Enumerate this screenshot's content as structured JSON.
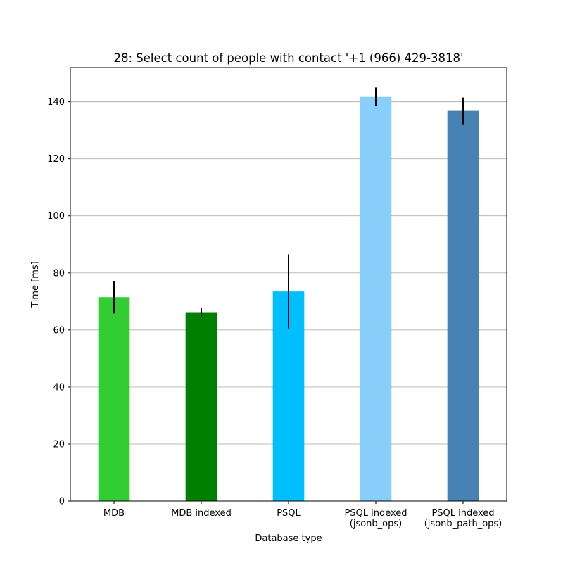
{
  "chart_data": {
    "type": "bar",
    "title": "28: Select count of people with contact '+1 (966) 429-3818'",
    "xlabel": "Database type",
    "ylabel": "Time [ms]",
    "ylim": [
      0,
      152
    ],
    "yticks": [
      0,
      20,
      40,
      60,
      80,
      100,
      120,
      140
    ],
    "grid": "y",
    "categories": [
      [
        "MDB"
      ],
      [
        "MDB indexed"
      ],
      [
        "PSQL"
      ],
      [
        "PSQL indexed",
        "(jsonb_ops)"
      ],
      [
        "PSQL indexed",
        "(jsonb_path_ops)"
      ]
    ],
    "values": [
      71.5,
      66.0,
      73.5,
      141.7,
      136.8
    ],
    "errors": [
      5.7,
      1.6,
      13.0,
      3.3,
      4.7
    ],
    "colors": [
      "#32cd32",
      "#008000",
      "#00bfff",
      "#87cefa",
      "#4682b4"
    ],
    "error_color": "#000000"
  }
}
